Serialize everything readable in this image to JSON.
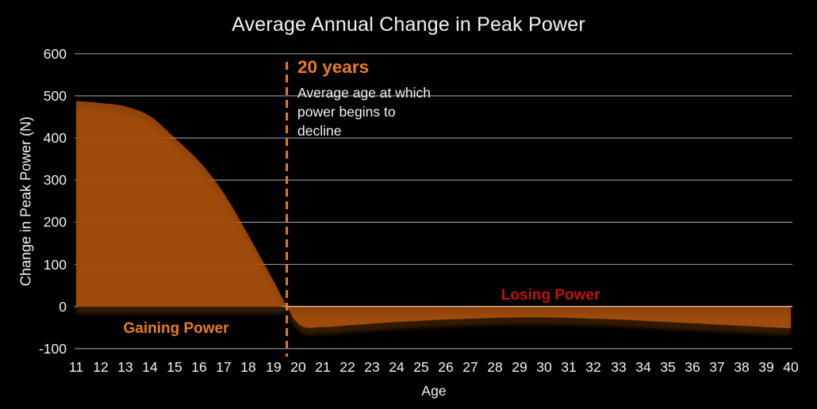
{
  "title": "Average Annual Change in Peak Power",
  "y_axis": {
    "label": "Change in Peak Power (N)",
    "ticks": [
      600,
      500,
      400,
      300,
      200,
      100,
      0,
      -100
    ]
  },
  "x_axis": {
    "label": "Age",
    "ticks": [
      11,
      12,
      13,
      14,
      15,
      16,
      17,
      18,
      19,
      20,
      21,
      22,
      23,
      24,
      25,
      26,
      27,
      28,
      29,
      30,
      31,
      32,
      33,
      34,
      35,
      36,
      37,
      38,
      39,
      40
    ]
  },
  "annotation": {
    "heading": "20 years",
    "body": "Average age at which\npower begins to\ndecline"
  },
  "region_labels": {
    "gaining": "Gaining Power",
    "losing": "Losing Power"
  },
  "colors": {
    "background": "#000000",
    "text": "#f2f2f2",
    "grid": "#9a9a9a",
    "zero_line": "#cfcfcf",
    "area_fill": "#c85e0f",
    "area_opacity": "0.72",
    "area_shadow": "#381b05",
    "accent_orange": "#e87d20",
    "losing_red": "#c01212"
  },
  "chart_data": {
    "type": "area",
    "title": "Average Annual Change in Peak Power",
    "xlabel": "Age",
    "ylabel": "Change in Peak Power (N)",
    "x": [
      11,
      12,
      13,
      14,
      15,
      16,
      17,
      18,
      19,
      20,
      21,
      22,
      23,
      24,
      25,
      26,
      27,
      28,
      29,
      30,
      31,
      32,
      33,
      34,
      35,
      36,
      37,
      38,
      39,
      40
    ],
    "values": [
      488,
      483,
      475,
      452,
      400,
      344,
      268,
      168,
      62,
      -40,
      -49,
      -45,
      -41,
      -37,
      -34,
      -31,
      -29,
      -27,
      -26,
      -26,
      -27,
      -29,
      -31,
      -34,
      -37,
      -40,
      -43,
      -46,
      -49,
      -52
    ],
    "xlim": [
      11,
      40
    ],
    "ylim": [
      -100,
      600
    ],
    "grid": true,
    "legend": false,
    "marker_line": {
      "age": 19.55,
      "style": "dashed",
      "color": "#e87d20",
      "label": "20 years"
    },
    "annotations": [
      {
        "text": "Gaining Power",
        "region": "positive",
        "color": "#e87d20"
      },
      {
        "text": "Losing Power",
        "region": "negative",
        "color": "#c01212"
      }
    ]
  }
}
